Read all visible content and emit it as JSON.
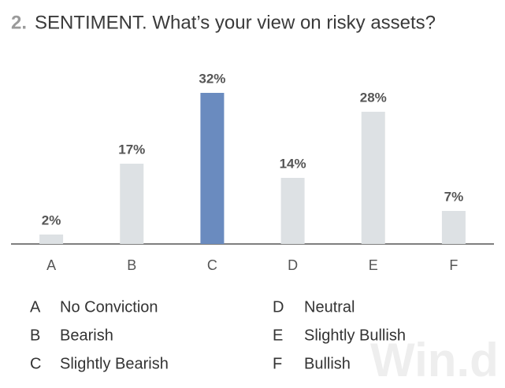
{
  "chart_data": {
    "type": "bar",
    "number": "2.",
    "title": "SENTIMENT. What’s your view on risky assets?",
    "categories": [
      "A",
      "B",
      "C",
      "D",
      "E",
      "F"
    ],
    "values": [
      2,
      17,
      32,
      14,
      28,
      7
    ],
    "value_labels": [
      "2%",
      "17%",
      "32%",
      "14%",
      "28%",
      "7%"
    ],
    "colors": [
      "#dde1e4",
      "#dde1e4",
      "#6a8bbf",
      "#dde1e4",
      "#dde1e4",
      "#dde1e4"
    ],
    "legend": [
      {
        "key": "A",
        "label": "No Conviction"
      },
      {
        "key": "B",
        "label": "Bearish"
      },
      {
        "key": "C",
        "label": "Slightly Bearish"
      },
      {
        "key": "D",
        "label": "Neutral"
      },
      {
        "key": "E",
        "label": "Slightly Bullish"
      },
      {
        "key": "F",
        "label": "Bullish"
      }
    ],
    "watermark": "Win.d"
  }
}
